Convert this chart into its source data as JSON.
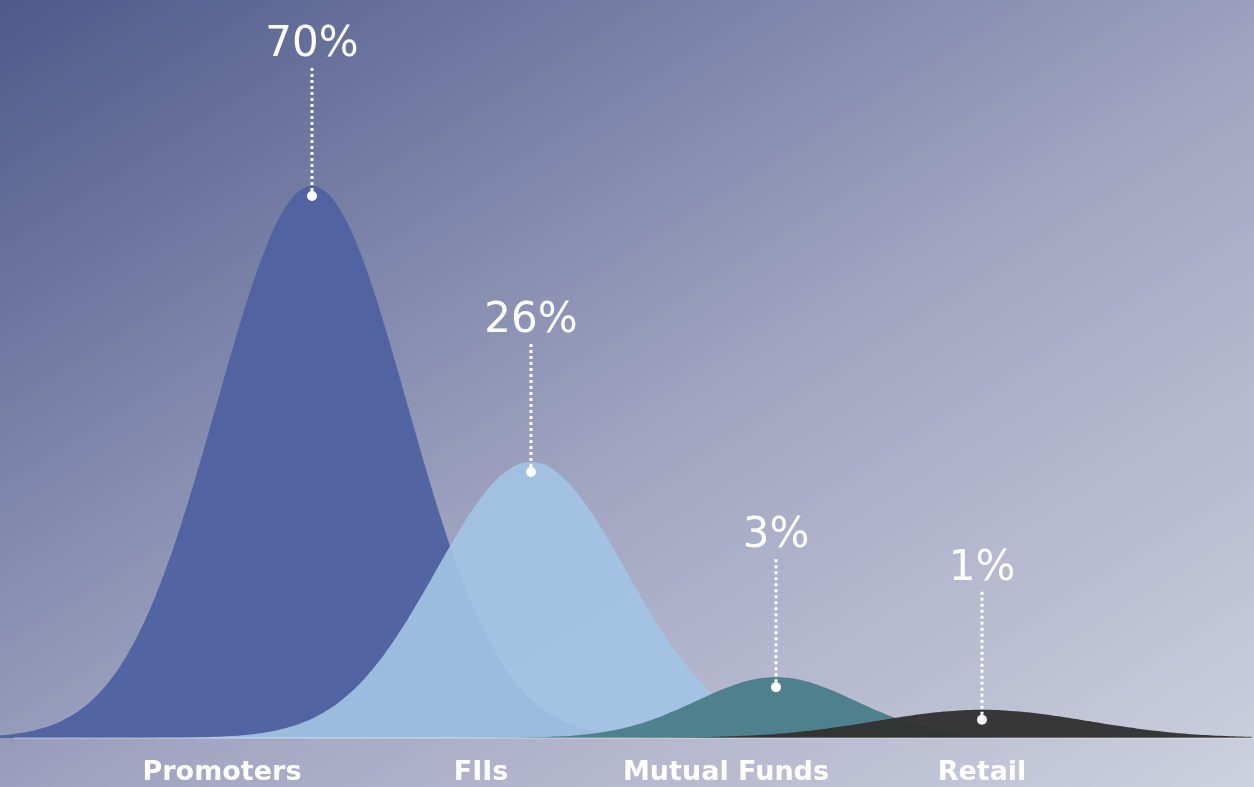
{
  "chart_data": {
    "type": "other",
    "categories": [
      "Promoters",
      "FIIs",
      "Mutual Funds",
      "Retail"
    ],
    "values": [
      70,
      26,
      3,
      1
    ],
    "value_labels": [
      "70%",
      "26%",
      "3%",
      "1%"
    ],
    "colors": [
      "#5062a0",
      "#a3c3e3",
      "#4a7f8a",
      "#333333"
    ]
  }
}
